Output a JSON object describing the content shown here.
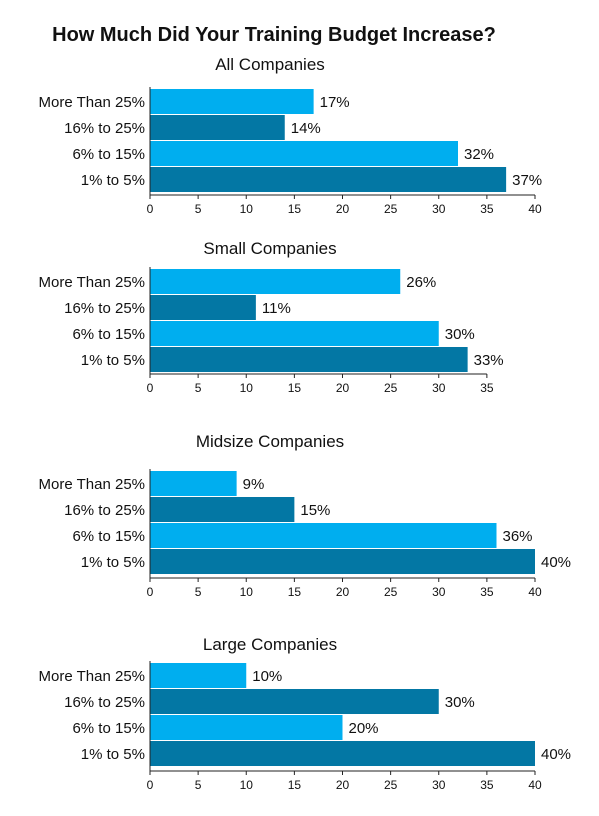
{
  "title": "How Much Did Your Training Budget Increase?",
  "colors": {
    "light": "#00aeef",
    "dark": "#0377a4",
    "text": "#111111"
  },
  "chart_data": [
    {
      "type": "bar",
      "orientation": "horizontal",
      "title": "All Companies",
      "categories": [
        "More Than 25%",
        "16% to 25%",
        "6% to 15%",
        "1% to 5%"
      ],
      "values": [
        17,
        14,
        32,
        37
      ],
      "value_labels": [
        "17%",
        "14%",
        "32%",
        "37%"
      ],
      "ticks": [
        0,
        5,
        10,
        15,
        20,
        25,
        30,
        35,
        40
      ],
      "xlim": [
        0,
        40
      ]
    },
    {
      "type": "bar",
      "orientation": "horizontal",
      "title": "Small Companies",
      "categories": [
        "More Than 25%",
        "16% to 25%",
        "6% to 15%",
        "1% to 5%"
      ],
      "values": [
        26,
        11,
        30,
        33
      ],
      "value_labels": [
        "26%",
        "11%",
        "30%",
        "33%"
      ],
      "ticks": [
        0,
        5,
        10,
        15,
        20,
        25,
        30,
        35
      ],
      "xlim": [
        0,
        35
      ]
    },
    {
      "type": "bar",
      "orientation": "horizontal",
      "title": "Midsize Companies",
      "categories": [
        "More Than 25%",
        "16% to 25%",
        "6% to 15%",
        "1% to 5%"
      ],
      "values": [
        9,
        15,
        36,
        40
      ],
      "value_labels": [
        "9%",
        "15%",
        "36%",
        "40%"
      ],
      "ticks": [
        0,
        5,
        10,
        15,
        20,
        25,
        30,
        35,
        40
      ],
      "xlim": [
        0,
        40
      ]
    },
    {
      "type": "bar",
      "orientation": "horizontal",
      "title": "Large Companies",
      "categories": [
        "More Than 25%",
        "16% to 25%",
        "6% to 15%",
        "1% to 5%"
      ],
      "values": [
        10,
        30,
        20,
        40
      ],
      "value_labels": [
        "10%",
        "30%",
        "20%",
        "40%"
      ],
      "ticks": [
        0,
        5,
        10,
        15,
        20,
        25,
        30,
        35,
        40
      ],
      "xlim": [
        0,
        40
      ]
    }
  ]
}
